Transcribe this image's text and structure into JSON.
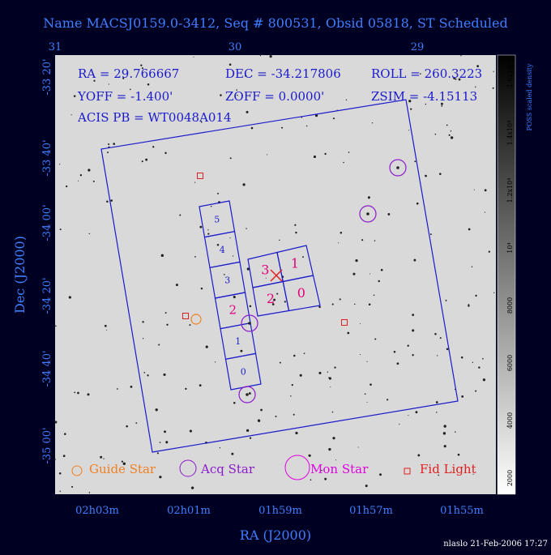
{
  "header": {
    "title": "Name MACSJ0159.0-3412, Seq # 800531, Obsid 05818, ST Scheduled"
  },
  "params": [
    "RA = 29.766667",
    "DEC = -34.217806",
    "ROLL = 260.3223",
    "YOFF = -1.400'",
    "ZOFF = 0.0000'",
    "ZSIM = -4.15113",
    "ACIS PB = WT0048A014"
  ],
  "axes": {
    "top_ticks": [
      "31",
      "30",
      "29"
    ],
    "left_ticks": [
      "-33 20'",
      "-33 40'",
      "-34 00'",
      "-34 20'",
      "-34 40'",
      "-35 00'"
    ],
    "bottom_ticks": [
      "02h03m",
      "02h01m",
      "01h59m",
      "01h57m",
      "01h55m"
    ],
    "x_label": "RA (J2000)",
    "y_label": "Dec (J2000)"
  },
  "colorbar": {
    "label": "POSS scaled density",
    "ticks": [
      "2000",
      "4000",
      "6000",
      "8000",
      "10⁴",
      "1.2x10⁴",
      "1.4x10⁴",
      "1.6x10⁴"
    ]
  },
  "chips": {
    "acis_s": [
      "0",
      "1",
      "2",
      "3",
      "4",
      "5"
    ],
    "acis_i": [
      "3",
      "1",
      "2",
      "0"
    ]
  },
  "legend": [
    "Guide Star",
    "Acq Star",
    "Mon Star",
    "Fid Light"
  ],
  "footer": "nlaslo 21-Feb-2006 17:27"
}
